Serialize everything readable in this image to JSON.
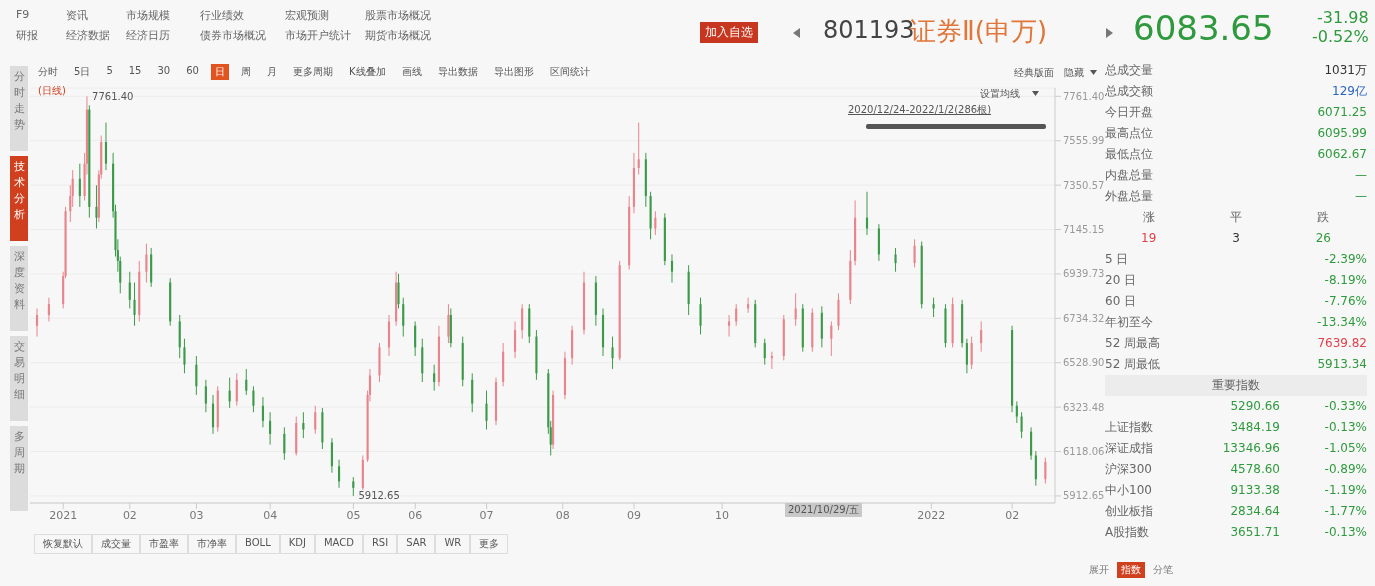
{
  "chart_data": [
    {
      "type": "candlestick",
      "title": "证券Ⅱ(申万)",
      "subtitle": "(日线)",
      "x": [
        "2020-12-24",
        "2020-12-29",
        "2021-01-04",
        "2021-01-05",
        "2021-01-07",
        "2021-01-08",
        "2021-01-11",
        "2021-01-13",
        "2021-01-14",
        "2021-01-15",
        "2021-01-18",
        "2021-01-19",
        "2021-01-20",
        "2021-01-22",
        "2021-01-25",
        "2021-01-26",
        "2021-01-27",
        "2021-01-28",
        "2021-02-01",
        "2021-02-03",
        "2021-02-05",
        "2021-02-08",
        "2021-02-10",
        "2021-02-18",
        "2021-02-22",
        "2021-02-24",
        "2021-03-01",
        "2021-03-05",
        "2021-03-08",
        "2021-03-10",
        "2021-03-15",
        "2021-03-18",
        "2021-03-22",
        "2021-03-25",
        "2021-03-29",
        "2021-04-01",
        "2021-04-07",
        "2021-04-12",
        "2021-04-15",
        "2021-04-20",
        "2021-04-23",
        "2021-04-27",
        "2021-04-30",
        "2021-05-06",
        "2021-05-10",
        "2021-05-12",
        "2021-05-13",
        "2021-05-17",
        "2021-05-21",
        "2021-05-24",
        "2021-05-25",
        "2021-05-27",
        "2021-06-01",
        "2021-06-04",
        "2021-06-09",
        "2021-06-11",
        "2021-06-15",
        "2021-06-16",
        "2021-06-21",
        "2021-06-25",
        "2021-07-01",
        "2021-07-05",
        "2021-07-08",
        "2021-07-13",
        "2021-07-16",
        "2021-07-19",
        "2021-07-22",
        "2021-07-27",
        "2021-07-28",
        "2021-07-29",
        "2021-08-03",
        "2021-08-06",
        "2021-08-11",
        "2021-08-16",
        "2021-08-19",
        "2021-08-23",
        "2021-08-26",
        "2021-08-30",
        "2021-09-01",
        "2021-09-03",
        "2021-09-06",
        "2021-09-08",
        "2021-09-10",
        "2021-09-14",
        "2021-09-17",
        "2021-09-24",
        "2021-09-29",
        "2021-10-11",
        "2021-10-14",
        "2021-10-19",
        "2021-10-22",
        "2021-10-26",
        "2021-10-29",
        "2021-11-03",
        "2021-11-08",
        "2021-11-11",
        "2021-11-15",
        "2021-11-19",
        "2021-11-23",
        "2021-11-26",
        "2021-12-01",
        "2021-12-03",
        "2021-12-08",
        "2021-12-13",
        "2021-12-20",
        "2021-12-28",
        "2021-12-31",
        "2022-01-05",
        "2022-01-10",
        "2022-01-13",
        "2022-01-17",
        "2022-01-19",
        "2022-01-21",
        "2022-01-25",
        "2022-02-07",
        "2022-02-09",
        "2022-02-11",
        "2022-02-15",
        "2022-02-17",
        "2022-02-21"
      ],
      "ohlc": [
        [
          6700,
          6780,
          6650,
          6750
        ],
        [
          6750,
          6830,
          6720,
          6800
        ],
        [
          6800,
          6950,
          6780,
          6930
        ],
        [
          6930,
          7250,
          6920,
          7230
        ],
        [
          7230,
          7350,
          7180,
          7300
        ],
        [
          7300,
          7420,
          7250,
          7380
        ],
        [
          7380,
          7450,
          7250,
          7300
        ],
        [
          7300,
          7500,
          7280,
          7450
        ],
        [
          7450,
          7761.4,
          7400,
          7700
        ],
        [
          7700,
          7720,
          7200,
          7250
        ],
        [
          7250,
          7350,
          7150,
          7200
        ],
        [
          7200,
          7420,
          7180,
          7400
        ],
        [
          7400,
          7580,
          7380,
          7550
        ],
        [
          7550,
          7640,
          7420,
          7450
        ],
        [
          7450,
          7500,
          7200,
          7230
        ],
        [
          7230,
          7260,
          7020,
          7050
        ],
        [
          7050,
          7100,
          6950,
          7000
        ],
        [
          7000,
          7020,
          6850,
          6900
        ],
        [
          6900,
          6950,
          6780,
          6820
        ],
        [
          6820,
          6900,
          6700,
          6750
        ],
        [
          6750,
          7000,
          6720,
          6950
        ],
        [
          6950,
          7080,
          6900,
          7030
        ],
        [
          7030,
          7060,
          6880,
          6900
        ],
        [
          6900,
          6920,
          6700,
          6720
        ],
        [
          6720,
          6750,
          6550,
          6600
        ],
        [
          6600,
          6640,
          6480,
          6520
        ],
        [
          6520,
          6560,
          6380,
          6420
        ],
        [
          6420,
          6450,
          6300,
          6340
        ],
        [
          6340,
          6380,
          6200,
          6230
        ],
        [
          6230,
          6420,
          6210,
          6400
        ],
        [
          6400,
          6460,
          6320,
          6350
        ],
        [
          6350,
          6480,
          6330,
          6450
        ],
        [
          6450,
          6500,
          6380,
          6400
        ],
        [
          6400,
          6420,
          6300,
          6330
        ],
        [
          6330,
          6370,
          6230,
          6260
        ],
        [
          6260,
          6300,
          6150,
          6200
        ],
        [
          6200,
          6230,
          6080,
          6110
        ],
        [
          6110,
          6280,
          6100,
          6250
        ],
        [
          6250,
          6300,
          6180,
          6220
        ],
        [
          6220,
          6330,
          6200,
          6300
        ],
        [
          6300,
          6320,
          6130,
          6160
        ],
        [
          6160,
          6180,
          6020,
          6050
        ],
        [
          6050,
          6080,
          5950,
          5980
        ],
        [
          5980,
          6000,
          5912.65,
          5950
        ],
        [
          5950,
          6100,
          5940,
          6080
        ],
        [
          6080,
          6400,
          6070,
          6380
        ],
        [
          6380,
          6500,
          6350,
          6470
        ],
        [
          6470,
          6620,
          6440,
          6600
        ],
        [
          6600,
          6750,
          6560,
          6720
        ],
        [
          6720,
          6950,
          6700,
          6900
        ],
        [
          6900,
          6940,
          6780,
          6800
        ],
        [
          6800,
          6830,
          6650,
          6700
        ],
        [
          6700,
          6720,
          6560,
          6600
        ],
        [
          6600,
          6640,
          6440,
          6480
        ],
        [
          6480,
          6520,
          6400,
          6440
        ],
        [
          6440,
          6700,
          6420,
          6650
        ],
        [
          6650,
          6800,
          6620,
          6750
        ],
        [
          6750,
          6780,
          6600,
          6620
        ],
        [
          6620,
          6650,
          6420,
          6450
        ],
        [
          6450,
          6480,
          6300,
          6340
        ],
        [
          6340,
          6400,
          6220,
          6260
        ],
        [
          6260,
          6460,
          6240,
          6440
        ],
        [
          6440,
          6620,
          6420,
          6580
        ],
        [
          6580,
          6720,
          6550,
          6680
        ],
        [
          6680,
          6800,
          6640,
          6780
        ],
        [
          6780,
          6800,
          6620,
          6650
        ],
        [
          6650,
          6680,
          6450,
          6480
        ],
        [
          6480,
          6500,
          6200,
          6230
        ],
        [
          6230,
          6260,
          6100,
          6150
        ],
        [
          6150,
          6400,
          6130,
          6380
        ],
        [
          6380,
          6580,
          6360,
          6550
        ],
        [
          6550,
          6700,
          6520,
          6680
        ],
        [
          6680,
          6950,
          6660,
          6900
        ],
        [
          6900,
          6930,
          6700,
          6750
        ],
        [
          6750,
          6780,
          6560,
          6600
        ],
        [
          6600,
          6650,
          6500,
          6550
        ],
        [
          6550,
          7000,
          6540,
          6980
        ],
        [
          6980,
          7300,
          6960,
          7250
        ],
        [
          7250,
          7500,
          7220,
          7430
        ],
        [
          7430,
          7639.82,
          7400,
          7470
        ],
        [
          7470,
          7500,
          7250,
          7300
        ],
        [
          7300,
          7320,
          7100,
          7150
        ],
        [
          7150,
          7230,
          7120,
          7200
        ],
        [
          7200,
          7220,
          6980,
          7000
        ],
        [
          7000,
          7030,
          6900,
          6950
        ],
        [
          6950,
          6980,
          6750,
          6800
        ],
        [
          6800,
          6830,
          6660,
          6700
        ],
        [
          6700,
          6750,
          6650,
          6720
        ],
        [
          6720,
          6800,
          6700,
          6780
        ],
        [
          6780,
          6830,
          6760,
          6800
        ],
        [
          6800,
          6820,
          6600,
          6620
        ],
        [
          6620,
          6640,
          6520,
          6550
        ],
        [
          6550,
          6580,
          6500,
          6560
        ],
        [
          6560,
          6750,
          6540,
          6730
        ],
        [
          6730,
          6850,
          6700,
          6780
        ],
        [
          6780,
          6800,
          6580,
          6600
        ],
        [
          6600,
          6780,
          6580,
          6760
        ],
        [
          6760,
          6790,
          6600,
          6640
        ],
        [
          6640,
          6720,
          6560,
          6700
        ],
        [
          6700,
          6850,
          6680,
          6820
        ],
        [
          6820,
          7050,
          6800,
          7000
        ],
        [
          7000,
          7280,
          6980,
          7200
        ],
        [
          7200,
          7320,
          7120,
          7150
        ],
        [
          7150,
          7170,
          7000,
          7030
        ],
        [
          7030,
          7060,
          6950,
          6990
        ],
        [
          6990,
          7100,
          6970,
          7070
        ],
        [
          7070,
          7090,
          6780,
          6800
        ],
        [
          6800,
          6830,
          6740,
          6780
        ],
        [
          6780,
          6800,
          6600,
          6620
        ],
        [
          6620,
          6830,
          6600,
          6800
        ],
        [
          6800,
          6820,
          6600,
          6620
        ],
        [
          6620,
          6640,
          6480,
          6520
        ],
        [
          6520,
          6650,
          6500,
          6620
        ],
        [
          6620,
          6720,
          6580,
          6680
        ],
        [
          6680,
          6700,
          6300,
          6330
        ],
        [
          6330,
          6350,
          6250,
          6280
        ],
        [
          6280,
          6300,
          6180,
          6210
        ],
        [
          6210,
          6230,
          6080,
          6100
        ],
        [
          6100,
          6120,
          5960,
          5990
        ],
        [
          5990,
          6090,
          5970,
          6070
        ]
      ],
      "colors": [
        "#e8848c",
        "#e8848c",
        "#e8848c",
        "#e8848c",
        "#e8848c",
        "#e8848c",
        "#3c9a4a",
        "#e8848c",
        "#e8848c",
        "#3c9a4a",
        "#3c9a4a",
        "#e8848c",
        "#e8848c",
        "#3c9a4a",
        "#3c9a4a",
        "#3c9a4a",
        "#3c9a4a",
        "#3c9a4a",
        "#3c9a4a",
        "#3c9a4a",
        "#e8848c",
        "#e8848c",
        "#3c9a4a",
        "#3c9a4a",
        "#3c9a4a",
        "#3c9a4a",
        "#3c9a4a",
        "#3c9a4a",
        "#3c9a4a",
        "#e8848c",
        "#3c9a4a",
        "#e8848c",
        "#3c9a4a",
        "#3c9a4a",
        "#3c9a4a",
        "#3c9a4a",
        "#3c9a4a",
        "#e8848c",
        "#3c9a4a",
        "#e8848c",
        "#3c9a4a",
        "#3c9a4a",
        "#3c9a4a",
        "#3c9a4a",
        "#e8848c",
        "#e8848c",
        "#e8848c",
        "#e8848c",
        "#e8848c",
        "#e8848c",
        "#3c9a4a",
        "#3c9a4a",
        "#3c9a4a",
        "#3c9a4a",
        "#3c9a4a",
        "#e8848c",
        "#e8848c",
        "#3c9a4a",
        "#3c9a4a",
        "#3c9a4a",
        "#3c9a4a",
        "#e8848c",
        "#e8848c",
        "#e8848c",
        "#e8848c",
        "#3c9a4a",
        "#3c9a4a",
        "#3c9a4a",
        "#3c9a4a",
        "#e8848c",
        "#e8848c",
        "#e8848c",
        "#e8848c",
        "#3c9a4a",
        "#3c9a4a",
        "#3c9a4a",
        "#e8848c",
        "#e8848c",
        "#e8848c",
        "#e8848c",
        "#3c9a4a",
        "#3c9a4a",
        "#e8848c",
        "#3c9a4a",
        "#3c9a4a",
        "#3c9a4a",
        "#3c9a4a",
        "#e8848c",
        "#e8848c",
        "#e8848c",
        "#3c9a4a",
        "#3c9a4a",
        "#e8848c",
        "#e8848c",
        "#e8848c",
        "#3c9a4a",
        "#e8848c",
        "#3c9a4a",
        "#e8848c",
        "#e8848c",
        "#e8848c",
        "#e8848c",
        "#3c9a4a",
        "#3c9a4a",
        "#3c9a4a",
        "#e8848c",
        "#3c9a4a",
        "#3c9a4a",
        "#3c9a4a",
        "#e8848c",
        "#3c9a4a",
        "#3c9a4a",
        "#e8848c",
        "#e8848c",
        "#3c9a4a",
        "#3c9a4a",
        "#3c9a4a",
        "#3c9a4a",
        "#3c9a4a",
        "#e8848c"
      ],
      "xlim": [
        "2020-12-21",
        "2022-02-25"
      ],
      "xticks": [
        {
          "value": "2021-01-04",
          "label": "2021"
        },
        {
          "value": "2021-02-01",
          "label": "02"
        },
        {
          "value": "2021-03-01",
          "label": "03"
        },
        {
          "value": "2021-04-01",
          "label": "04"
        },
        {
          "value": "2021-05-06",
          "label": "05"
        },
        {
          "value": "2021-06-01",
          "label": "06"
        },
        {
          "value": "2021-07-01",
          "label": "07"
        },
        {
          "value": "2021-08-02",
          "label": "08"
        },
        {
          "value": "2021-09-01",
          "label": "09"
        },
        {
          "value": "2021-10-08",
          "label": "10"
        },
        {
          "value": "2022-01-04",
          "label": "2022"
        },
        {
          "value": "2022-02-07",
          "label": "02"
        }
      ],
      "ylim": [
        5880,
        7800
      ],
      "yticks": [
        {
          "value": 5912.65,
          "label": "5912.65"
        },
        {
          "value": 6118.06,
          "label": "6118.06"
        },
        {
          "value": 6323.48,
          "label": "6323.48"
        },
        {
          "value": 6528.9,
          "label": "6528.90"
        },
        {
          "value": 6734.32,
          "label": "6734.32"
        },
        {
          "value": 6939.73,
          "label": "6939.73"
        },
        {
          "value": 7145.15,
          "label": "7145.15"
        },
        {
          "value": 7350.57,
          "label": "7350.57"
        },
        {
          "value": 7555.99,
          "label": "7555.99"
        },
        {
          "value": 7761.4,
          "label": "7761.40"
        }
      ],
      "grid": "y",
      "annotations": [
        "F9",
        "资讯",
        "市场规模",
        "行业绩效",
        "宏观预测",
        "股票市场概况",
        "研报",
        "经济数据",
        "经济日历",
        "债券市场概况",
        "市场开户统计",
        "期货市场概况",
        "加入自选",
        "801193",
        "6083.65",
        "-31.98",
        "-0.52%",
        "分时",
        "5日",
        "5",
        "15",
        "30",
        "60",
        "日",
        "周",
        "月",
        "更多周期",
        "K线叠加",
        "画线",
        "导出数据",
        "导出图形",
        "区间统计",
        "经典版面",
        "隐藏",
        "分时走势",
        "技术分析",
        "深度资料",
        "交易明细",
        "多周期",
        "设置均线",
        "2020/12/24-2022/1/2(286根)",
        {
          "text": "7761.40",
          "x": "2021-01-14",
          "y": 7761.4
        },
        {
          "text": "5912.65",
          "x": "2021-05-06",
          "y": 5912.65
        },
        "2021/10/29/五",
        "恢复默认",
        "成交量",
        "市盈率",
        "市净率",
        "BOLL",
        "KDJ",
        "MACD",
        "RSI",
        "SAR",
        "WR",
        "更多",
        "展开",
        "指数",
        "分笔"
      ]
    },
    {
      "type": "other",
      "annotations": [
        "总成交量",
        "1031万",
        "总成交额",
        "129亿",
        "今日开盘",
        "6071.25",
        "最高点位",
        "6095.99",
        "最低点位",
        "6062.67",
        "内盘总量",
        "—",
        "外盘总量",
        "—",
        "涨",
        "平",
        "跌",
        "19",
        "3",
        "26",
        "5 日",
        "-2.39%",
        "20 日",
        "-8.19%",
        "60 日",
        "-7.76%",
        "年初至今",
        "-13.34%",
        "52 周最高",
        "7639.82",
        "52 周最低",
        "5913.34",
        "重要指数",
        "5290.66",
        "-0.33%",
        "上证指数",
        "3484.19",
        "-0.13%",
        "深证成指",
        "13346.96",
        "-1.05%",
        "沪深300",
        "4578.60",
        "-0.89%",
        "中小100",
        "9133.38",
        "-1.19%",
        "创业板指",
        "2834.64",
        "-1.77%",
        "A股指数",
        "3651.71",
        "-0.13%"
      ]
    }
  ]
}
